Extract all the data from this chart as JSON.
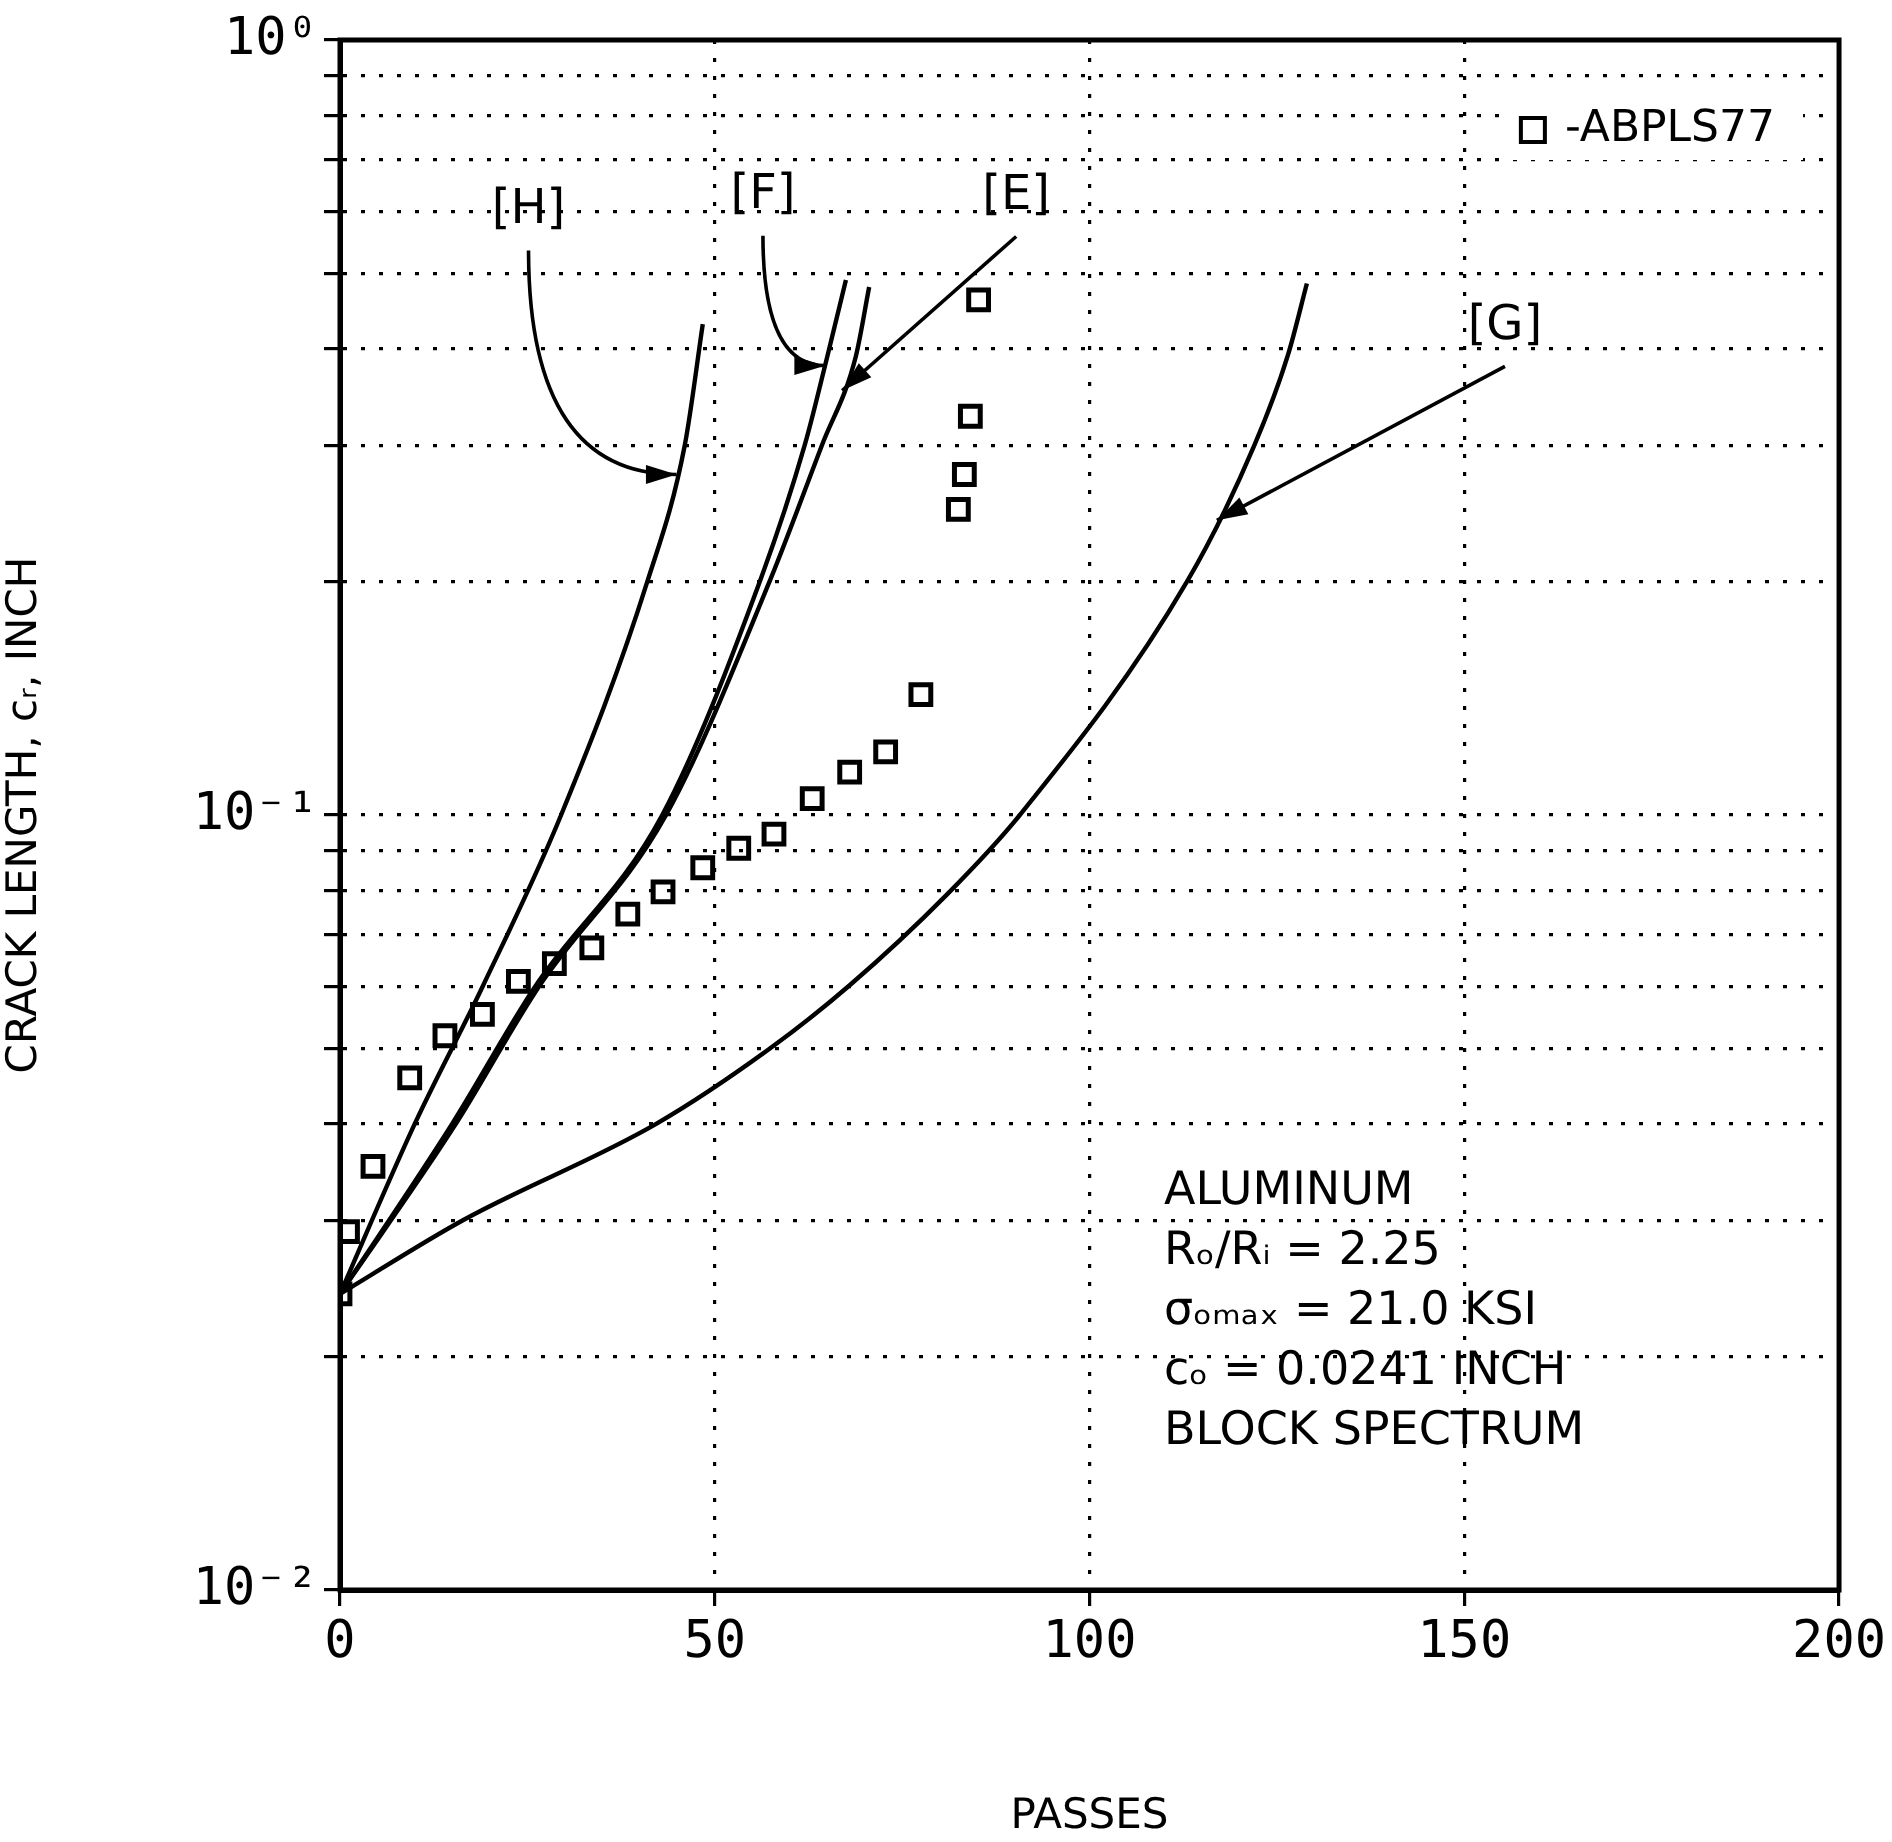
{
  "chart_data": {
    "type": "line",
    "xlabel": "PASSES",
    "ylabel": "CRACK LENGTH, cᵣ, INCH",
    "xlim": [
      0,
      200
    ],
    "xticks": [
      0,
      50,
      100,
      150,
      200
    ],
    "ylim": [
      0.01,
      1
    ],
    "log": "y",
    "yticks": [
      {
        "value": 0.01,
        "label": "10⁻²"
      },
      {
        "value": 0.02,
        "label": null
      },
      {
        "value": 0.03,
        "label": null
      },
      {
        "value": 0.04,
        "label": null
      },
      {
        "value": 0.05,
        "label": null
      },
      {
        "value": 0.06,
        "label": null
      },
      {
        "value": 0.07,
        "label": null
      },
      {
        "value": 0.08,
        "label": null
      },
      {
        "value": 0.09,
        "label": null
      },
      {
        "value": 0.1,
        "label": "10⁻¹"
      },
      {
        "value": 0.2,
        "label": null
      },
      {
        "value": 0.3,
        "label": null
      },
      {
        "value": 0.4,
        "label": null
      },
      {
        "value": 0.5,
        "label": null
      },
      {
        "value": 0.6,
        "label": null
      },
      {
        "value": 0.7,
        "label": null
      },
      {
        "value": 0.8,
        "label": null
      },
      {
        "value": 0.9,
        "label": null
      },
      {
        "value": 1,
        "label": "10⁰"
      }
    ],
    "grid": true,
    "legend": "top right",
    "series": [
      {
        "name": "-ABPLS77",
        "type": "scatter",
        "marker": "square",
        "color": "#000000",
        "x": [
          0,
          1,
          4.4,
          9.3,
          14,
          19,
          23.8,
          28.6,
          33.6,
          38.4,
          43.1,
          48.4,
          53.2,
          57.9,
          63,
          68,
          72.8,
          77.5,
          82.5,
          83.3,
          84.1,
          85.2
        ],
        "values": [
          0.0241,
          0.029,
          0.0352,
          0.0458,
          0.0519,
          0.0553,
          0.061,
          0.0643,
          0.0674,
          0.0745,
          0.0796,
          0.0855,
          0.0906,
          0.0945,
          0.105,
          0.1136,
          0.1206,
          0.143,
          0.248,
          0.275,
          0.327,
          0.462
        ]
      },
      {
        "color": "#000000",
        "x": [
          0,
          10,
          19,
          29.5,
          41,
          46,
          48.4
        ],
        "values": [
          0.0241,
          0.04,
          0.06,
          0.1,
          0.2,
          0.3,
          0.43
        ]
      },
      {
        "color": "#000000",
        "x": [
          0,
          15,
          26,
          43,
          56,
          62,
          65,
          67.5
        ],
        "values": [
          0.0241,
          0.04,
          0.06,
          0.1,
          0.2,
          0.3,
          0.39,
          0.49
        ]
      },
      {
        "color": "#000000",
        "x": [
          0,
          15.5,
          26.5,
          43.5,
          57.3,
          64.3,
          68.8,
          70.6
        ],
        "values": [
          0.0241,
          0.04,
          0.06,
          0.1,
          0.2,
          0.3,
          0.39,
          0.48
        ]
      },
      {
        "color": "#000000",
        "x": [
          0,
          16.4,
          42.3,
          57.4,
          68,
          81,
          90.7,
          113,
          122,
          126.5,
          129
        ],
        "values": [
          0.0241,
          0.03,
          0.04,
          0.05,
          0.0603,
          0.079,
          0.1,
          0.2,
          0.3,
          0.393,
          0.485
        ]
      }
    ],
    "annotations": [
      {
        "text": "[H]",
        "x": 44.9,
        "y": 0.275
      },
      {
        "text": "[F]",
        "x": 64.7,
        "y": 0.38
      },
      {
        "text": "[E]",
        "x": 67,
        "y": 0.353
      },
      {
        "text": "[G]",
        "x": 117,
        "y": 0.24
      },
      "ALUMINUM",
      "Rₒ/Rᵢ = 2.25",
      "σₒₘₐₓ = 21.0 KSI",
      "cₒ = 0.0241 INCH",
      "BLOCK SPECTRUM"
    ]
  }
}
